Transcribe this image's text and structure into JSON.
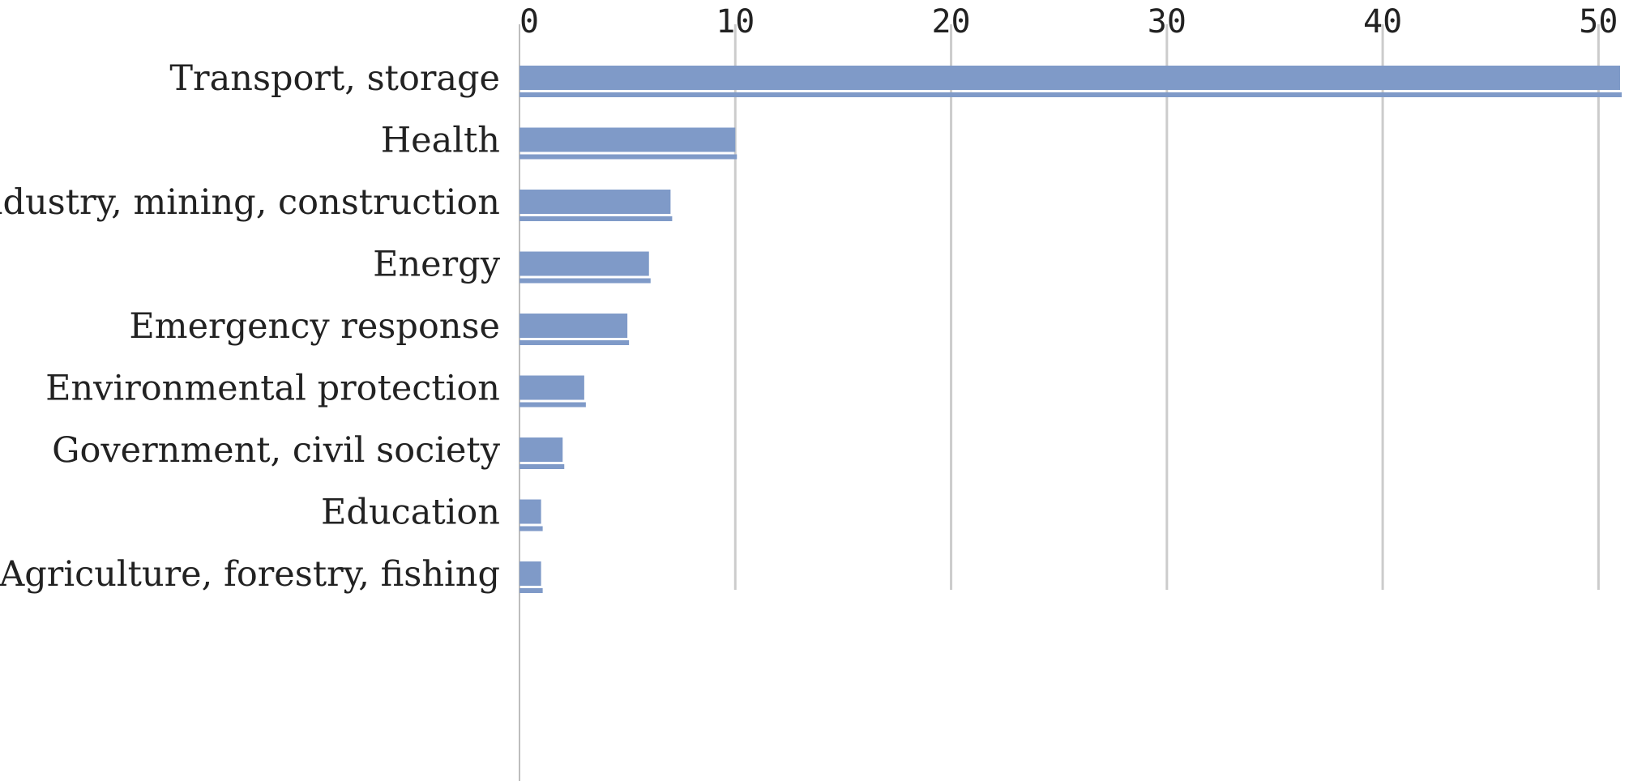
{
  "chart_data": {
    "type": "bar",
    "orientation": "horizontal",
    "title": "",
    "xlabel": "",
    "ylabel": "",
    "categories": [
      "Transport, storage",
      "Health",
      "Industry, mining, construction",
      "Energy",
      "Emergency response",
      "Environmental protection",
      "Government, civil society",
      "Education",
      "Agriculture, forestry, fishing"
    ],
    "series": [
      {
        "values": [
          51,
          10,
          7,
          6,
          5,
          3,
          2,
          1,
          1
        ]
      },
      {
        "values": [
          51,
          10,
          7,
          6,
          5,
          3,
          2,
          1,
          1
        ]
      }
    ],
    "xlim": [
      0,
      51
    ],
    "xticks": [
      "0",
      "10",
      "20",
      "30",
      "40",
      "50"
    ],
    "xtick_values": [
      0,
      10,
      20,
      30,
      40,
      50
    ],
    "x_axis_position": "top",
    "grid": "vertical",
    "legend": "none",
    "colors": {
      "bar": "#7f9ac8",
      "grid": "#cccccc"
    }
  }
}
